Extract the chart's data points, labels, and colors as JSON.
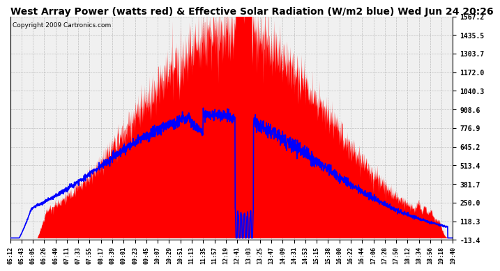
{
  "title": "West Array Power (watts red) & Effective Solar Radiation (W/m2 blue) Wed Jun 24 20:26",
  "copyright": "Copyright 2009 Cartronics.com",
  "ylim": [
    -13.4,
    1567.2
  ],
  "yticks": [
    1567.2,
    1435.5,
    1303.7,
    1172.0,
    1040.3,
    908.6,
    776.9,
    645.2,
    513.4,
    381.7,
    250.0,
    118.3,
    -13.4
  ],
  "xtick_labels": [
    "05:12",
    "05:43",
    "06:05",
    "06:26",
    "06:49",
    "07:11",
    "07:33",
    "07:55",
    "08:17",
    "08:39",
    "09:01",
    "09:23",
    "09:45",
    "10:07",
    "10:29",
    "10:51",
    "11:13",
    "11:35",
    "11:57",
    "12:19",
    "12:41",
    "13:03",
    "13:25",
    "13:47",
    "14:09",
    "14:31",
    "14:53",
    "15:15",
    "15:38",
    "16:00",
    "16:22",
    "16:44",
    "17:06",
    "17:28",
    "17:50",
    "18:12",
    "18:34",
    "18:56",
    "19:18",
    "19:40"
  ],
  "background_color": "#ffffff",
  "plot_background": "#f0f0f0",
  "red_color": "#ff0000",
  "blue_color": "#0000ff",
  "grid_color": "#aaaaaa",
  "title_fontsize": 10,
  "copyright_fontsize": 6.5
}
